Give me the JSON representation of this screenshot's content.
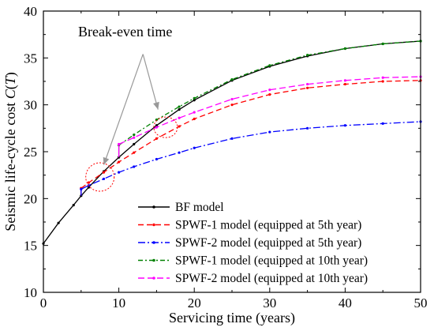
{
  "chart_data": {
    "type": "line",
    "title": "",
    "xlabel": "Servicing time (years)",
    "ylabel_prefix": "Seismic life-cycle cost ",
    "ylabel_var": "C",
    "ylabel_open": "(",
    "ylabel_arg": "T",
    "ylabel_close": ")",
    "xlim": [
      0,
      50
    ],
    "ylim": [
      10,
      40
    ],
    "xticks": [
      0,
      10,
      20,
      30,
      40,
      50
    ],
    "yticks": [
      10,
      15,
      20,
      25,
      30,
      35,
      40
    ],
    "grid": false,
    "legend_position": "bottom-right",
    "annotation": "Break-even time",
    "series": [
      {
        "name": "BF model",
        "color": "#000000",
        "dash": "",
        "x": [
          0,
          2,
          4,
          5,
          6,
          8,
          10,
          12,
          15,
          18,
          20,
          25,
          30,
          35,
          40,
          45,
          50
        ],
        "y": [
          15.2,
          17.4,
          19.3,
          20.3,
          21.2,
          22.9,
          24.4,
          25.8,
          27.8,
          29.5,
          30.5,
          32.6,
          34.1,
          35.2,
          36.0,
          36.5,
          36.8
        ]
      },
      {
        "name": "SPWF-1 model (equipped at 5th year)",
        "color": "#ff0000",
        "dash": "7,4",
        "x": [
          5,
          6,
          8,
          10,
          12,
          15,
          18,
          20,
          25,
          30,
          35,
          40,
          45,
          50
        ],
        "y": [
          21.1,
          21.7,
          22.8,
          23.9,
          24.9,
          26.4,
          27.7,
          28.5,
          30.0,
          31.1,
          31.8,
          32.2,
          32.5,
          32.6
        ]
      },
      {
        "name": "SPWF-2 model (equipped at 5th year)",
        "color": "#0000ff",
        "dash": "9,3,2,3",
        "x": [
          5,
          6,
          8,
          10,
          12,
          15,
          18,
          20,
          25,
          30,
          35,
          40,
          45,
          50
        ],
        "y": [
          21.0,
          21.4,
          22.1,
          22.8,
          23.4,
          24.2,
          24.9,
          25.4,
          26.4,
          27.1,
          27.5,
          27.8,
          28.0,
          28.2
        ]
      },
      {
        "name": "SPWF-1 model (equipped at 10th year)",
        "color": "#008000",
        "dash": "6,3,2,3",
        "x": [
          10,
          12,
          15,
          18,
          20,
          25,
          30,
          35,
          40,
          45,
          50
        ],
        "y": [
          25.7,
          26.8,
          28.4,
          29.8,
          30.7,
          32.7,
          34.2,
          35.3,
          36.0,
          36.5,
          36.8
        ]
      },
      {
        "name": "SPWF-2 model (equipped at 10th year)",
        "color": "#ff00ff",
        "dash": "8,4",
        "x": [
          10,
          12,
          15,
          18,
          20,
          25,
          30,
          35,
          40,
          45,
          50
        ],
        "y": [
          25.8,
          26.5,
          27.6,
          28.6,
          29.2,
          30.6,
          31.6,
          32.2,
          32.6,
          32.9,
          33.0
        ]
      }
    ]
  }
}
